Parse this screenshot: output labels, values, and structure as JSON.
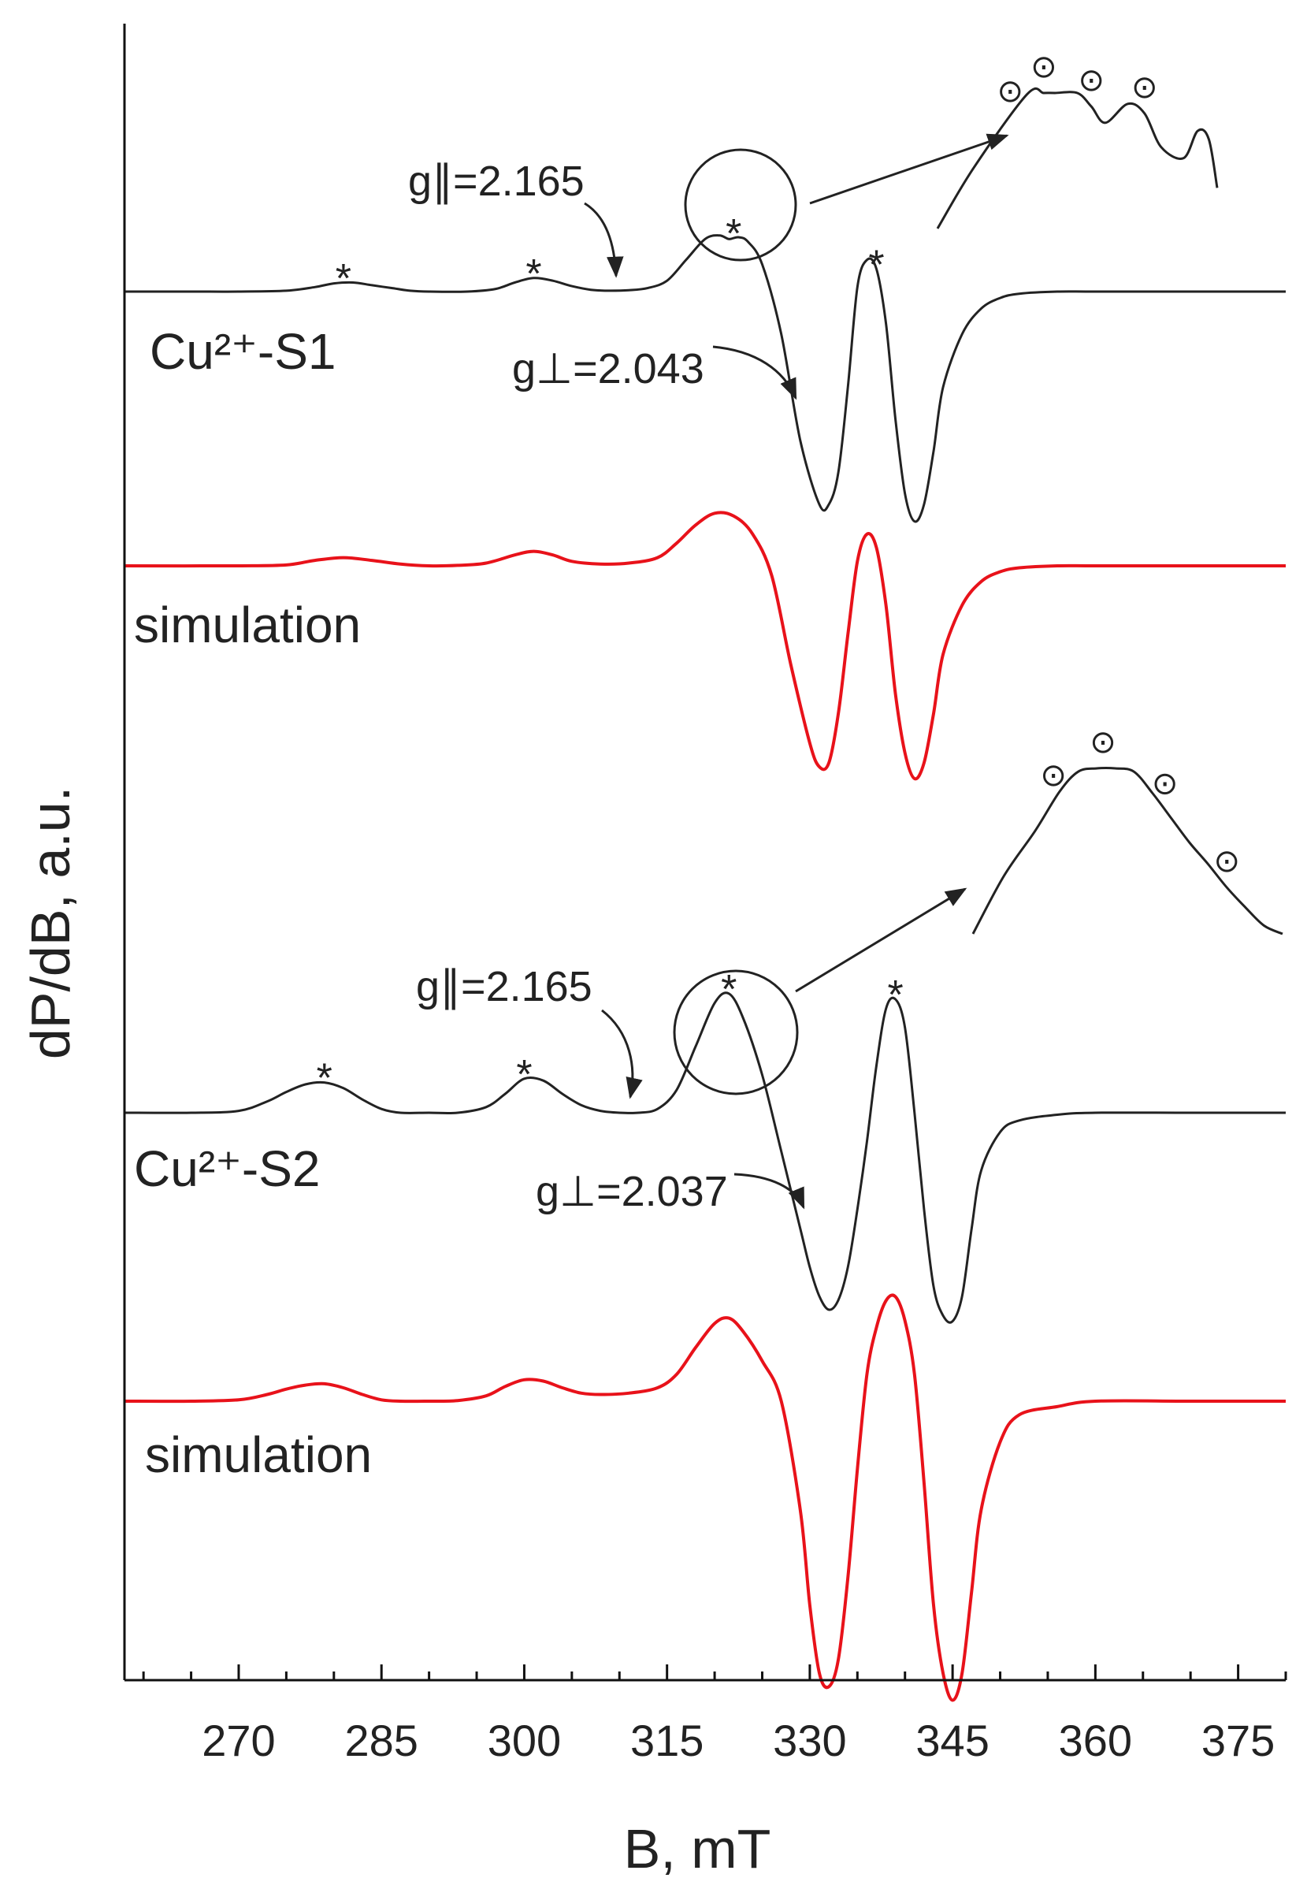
{
  "chart_data": {
    "type": "line",
    "xlabel": "B, mT",
    "ylabel": "dP/dB, a.u.",
    "xlim": [
      258,
      380
    ],
    "x_ticks": [
      270,
      285,
      300,
      315,
      330,
      345,
      360,
      375
    ],
    "x_tick_labels": [
      "270",
      "285",
      "300",
      "315",
      "330",
      "345",
      "360",
      "375"
    ],
    "y_ticks_shown": false,
    "grid": false,
    "legend": "none",
    "colors": {
      "experiment": "#222222",
      "simulation": "#e8121a",
      "axes": "#111111"
    },
    "series": [
      {
        "name": "Cu2+-S1",
        "kind": "experiment",
        "x": [
          258,
          265,
          270,
          275,
          278,
          280,
          282,
          284,
          286,
          288,
          290,
          294,
          297,
          299,
          301,
          303,
          305,
          307,
          309,
          311,
          313,
          315,
          317,
          319,
          320.5,
          321.5,
          322.5,
          323.5,
          325,
          327,
          329,
          331,
          332,
          333,
          334,
          335,
          336,
          337,
          338,
          339,
          340,
          341,
          342,
          343,
          344,
          346,
          348,
          350,
          352,
          356,
          360,
          370,
          380
        ],
        "y": [
          0,
          0,
          0,
          0.01,
          0.05,
          0.09,
          0.1,
          0.07,
          0.04,
          0.01,
          0,
          0,
          0.03,
          0.1,
          0.15,
          0.12,
          0.06,
          0.02,
          0.01,
          0.015,
          0.04,
          0.12,
          0.35,
          0.58,
          0.62,
          0.58,
          0.6,
          0.55,
          0.3,
          -0.2,
          -0.7,
          -1.0,
          -1.0,
          -0.85,
          -0.45,
          0.05,
          0.35,
          0.25,
          -0.15,
          -0.6,
          -0.95,
          -1.08,
          -1.0,
          -0.75,
          -0.45,
          -0.2,
          -0.08,
          -0.03,
          -0.01,
          0,
          0,
          0,
          0
        ]
      },
      {
        "name": "simulation",
        "kind": "simulation",
        "x": [
          258,
          270,
          275,
          278,
          281,
          284,
          287,
          290,
          293,
          296,
          299,
          301,
          303,
          305,
          308,
          311,
          314,
          316,
          318,
          320,
          322,
          324,
          326,
          328,
          330,
          331,
          332,
          333,
          334,
          335,
          336,
          337,
          338,
          339,
          340,
          341,
          342,
          343,
          344,
          346,
          348,
          350,
          352,
          356,
          360,
          370,
          380
        ],
        "y": [
          0,
          0,
          0.01,
          0.06,
          0.09,
          0.06,
          0.02,
          0,
          0.005,
          0.03,
          0.12,
          0.16,
          0.12,
          0.05,
          0.02,
          0.03,
          0.09,
          0.25,
          0.45,
          0.58,
          0.55,
          0.35,
          -0.05,
          -0.5,
          -0.9,
          -1.02,
          -1.0,
          -0.75,
          -0.35,
          0.05,
          0.35,
          0.2,
          -0.2,
          -0.65,
          -0.95,
          -1.08,
          -1.0,
          -0.75,
          -0.45,
          -0.2,
          -0.08,
          -0.03,
          -0.01,
          0,
          0,
          0,
          0
        ]
      },
      {
        "name": "Cu2+-S2",
        "kind": "experiment",
        "x": [
          258,
          265,
          270,
          273,
          275,
          277,
          279,
          281,
          283,
          285,
          287,
          290,
          293,
          296,
          298,
          300,
          302,
          304,
          306,
          308,
          310,
          312,
          314,
          316,
          318,
          320,
          321.5,
          323,
          325,
          327,
          329,
          330,
          331,
          332,
          333,
          334,
          335,
          336,
          337,
          338,
          339,
          340,
          341,
          342,
          343,
          344,
          345,
          346,
          347,
          348,
          350,
          352,
          356,
          360,
          370,
          380
        ],
        "y": [
          0,
          0,
          0.01,
          0.06,
          0.11,
          0.15,
          0.16,
          0.13,
          0.07,
          0.02,
          0,
          0,
          0,
          0.03,
          0.1,
          0.18,
          0.17,
          0.1,
          0.04,
          0.01,
          0,
          0,
          0.02,
          0.12,
          0.35,
          0.58,
          0.63,
          0.5,
          0.2,
          -0.2,
          -0.6,
          -0.8,
          -0.95,
          -1.02,
          -0.97,
          -0.8,
          -0.5,
          -0.15,
          0.25,
          0.55,
          0.6,
          0.45,
          0.0,
          -0.5,
          -0.9,
          -1.05,
          -1.08,
          -0.95,
          -0.6,
          -0.3,
          -0.1,
          -0.04,
          -0.01,
          0,
          0,
          0
        ]
      },
      {
        "name": "simulation",
        "kind": "simulation",
        "x": [
          258,
          265,
          270,
          273,
          275,
          277,
          279,
          281,
          283,
          285,
          287,
          290,
          293,
          296,
          298,
          300,
          302,
          304,
          306,
          308,
          311,
          314,
          316,
          318,
          320,
          321.5,
          323,
          325,
          327,
          329,
          330,
          331,
          332,
          333,
          334,
          335,
          336,
          337,
          338,
          339,
          340,
          341,
          342,
          343,
          344,
          345,
          346,
          347,
          348,
          350,
          352,
          356,
          360,
          370,
          380
        ],
        "y": [
          0,
          0,
          0.01,
          0.05,
          0.09,
          0.12,
          0.13,
          0.1,
          0.05,
          0.01,
          0,
          0,
          0.005,
          0.04,
          0.11,
          0.16,
          0.15,
          0.1,
          0.06,
          0.05,
          0.06,
          0.1,
          0.2,
          0.4,
          0.58,
          0.62,
          0.52,
          0.3,
          0.0,
          -0.4,
          -0.75,
          -1.0,
          -1.05,
          -0.95,
          -0.65,
          -0.25,
          0.2,
          0.55,
          0.75,
          0.78,
          0.6,
          0.2,
          -0.3,
          -0.75,
          -1.0,
          -1.1,
          -1.0,
          -0.7,
          -0.4,
          -0.15,
          -0.05,
          -0.02,
          0,
          0,
          0
        ]
      }
    ],
    "insets": [
      {
        "x": [
          0,
          0.13,
          0.32,
          0.38,
          0.42,
          0.5,
          0.55,
          0.6,
          0.68,
          0.74,
          0.8,
          0.88,
          0.93,
          0.97,
          1.0
        ],
        "y": [
          0,
          0.45,
          0.99,
          1.0,
          1.0,
          1.0,
          0.9,
          0.78,
          0.92,
          0.85,
          0.6,
          0.52,
          0.72,
          0.66,
          0.3
        ]
      },
      {
        "x": [
          0,
          0.1,
          0.2,
          0.28,
          0.34,
          0.4,
          0.46,
          0.52,
          0.58,
          0.64,
          0.7,
          0.76,
          0.82,
          0.88,
          0.94,
          1.0
        ],
        "y": [
          0,
          0.35,
          0.62,
          0.86,
          0.98,
          1.0,
          1.0,
          0.98,
          0.85,
          0.7,
          0.55,
          0.42,
          0.28,
          0.16,
          0.05,
          0
        ]
      }
    ],
    "annotations": {
      "labels": [
        "Cu²⁺-S1",
        "simulation",
        "Cu²⁺-S2",
        "simulation"
      ],
      "s1": {
        "g_par": "g∥=2.165",
        "g_perp": "g⊥=2.043"
      },
      "s2": {
        "g_par": "g∥=2.165",
        "g_perp": "g⊥=2.037"
      },
      "peak_marker": "*",
      "hyperfine_marker": "⊙",
      "s1_peak_markers_x": [
        281,
        301,
        322,
        337
      ],
      "s2_peak_markers_x": [
        279,
        300,
        321.5,
        339
      ]
    }
  }
}
